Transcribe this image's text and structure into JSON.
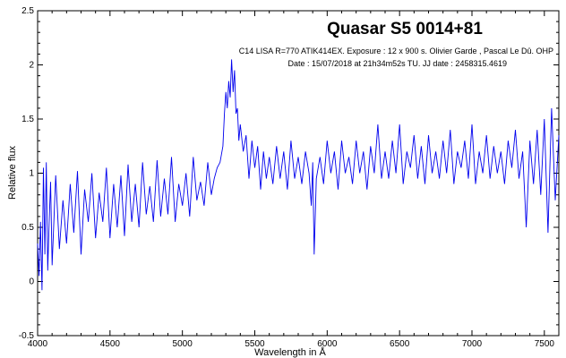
{
  "chart_data": {
    "type": "line",
    "title": "Quasar S5 0014+81",
    "subtitle_lines": [
      "C14 LISA R=770 ATIK414EX. Exposure : 12 x 900 s. Olivier Garde , Pascal Le Dû. OHP",
      "Date : 15/07/2018 at 21h34m52s TU. JJ date : 2458315.4619"
    ],
    "xlabel": "Wavelength in Å",
    "ylabel": "Relative flux",
    "xlim": [
      4000,
      7600
    ],
    "ylim": [
      -0.5,
      2.5
    ],
    "x_ticks": [
      {
        "value": 4000,
        "label": "4000"
      },
      {
        "value": 4500,
        "label": "4500"
      },
      {
        "value": 5000,
        "label": "5000"
      },
      {
        "value": 5500,
        "label": "5500"
      },
      {
        "value": 6000,
        "label": "6000"
      },
      {
        "value": 6500,
        "label": "6500"
      },
      {
        "value": 7000,
        "label": "7000"
      },
      {
        "value": 7500,
        "label": "7500"
      }
    ],
    "y_ticks": [
      {
        "value": -0.5,
        "label": "-0.5"
      },
      {
        "value": 0,
        "label": "0"
      },
      {
        "value": 0.5,
        "label": "0.5"
      },
      {
        "value": 1,
        "label": "1"
      },
      {
        "value": 1.5,
        "label": "1.5"
      },
      {
        "value": 2,
        "label": "2"
      },
      {
        "value": 2.5,
        "label": "2.5"
      }
    ],
    "grid": false,
    "line_color": "#0000ee",
    "series": [
      {
        "x": [
          4000,
          4010,
          4020,
          4030,
          4040,
          4050,
          4060,
          4070,
          4080,
          4090,
          4100,
          4125,
          4150,
          4175,
          4200,
          4225,
          4250,
          4275,
          4300,
          4325,
          4350,
          4375,
          4400,
          4425,
          4450,
          4475,
          4500,
          4525,
          4550,
          4575,
          4600,
          4625,
          4650,
          4675,
          4700,
          4725,
          4750,
          4775,
          4800,
          4825,
          4850,
          4875,
          4900,
          4925,
          4950,
          4975,
          5000,
          5025,
          5050,
          5075,
          5100,
          5125,
          5150,
          5175,
          5200,
          5220,
          5240,
          5260,
          5280,
          5290,
          5300,
          5310,
          5320,
          5330,
          5340,
          5350,
          5360,
          5370,
          5380,
          5390,
          5400,
          5420,
          5440,
          5460,
          5480,
          5500,
          5520,
          5540,
          5560,
          5580,
          5600,
          5625,
          5650,
          5675,
          5700,
          5725,
          5750,
          5775,
          5800,
          5825,
          5850,
          5875,
          5890,
          5900,
          5910,
          5925,
          5950,
          5975,
          6000,
          6025,
          6050,
          6075,
          6100,
          6125,
          6150,
          6175,
          6200,
          6225,
          6250,
          6275,
          6300,
          6325,
          6350,
          6375,
          6400,
          6425,
          6450,
          6475,
          6500,
          6525,
          6550,
          6575,
          6600,
          6625,
          6650,
          6675,
          6700,
          6725,
          6750,
          6775,
          6800,
          6825,
          6850,
          6875,
          6900,
          6925,
          6950,
          6975,
          7000,
          7025,
          7050,
          7075,
          7100,
          7125,
          7150,
          7175,
          7200,
          7225,
          7250,
          7275,
          7300,
          7325,
          7350,
          7375,
          7400,
          7425,
          7450,
          7475,
          7500,
          7525,
          7550,
          7575,
          7600
        ],
        "y": [
          0.35,
          0.05,
          0.55,
          -0.08,
          1.05,
          0.25,
          1.1,
          0.1,
          0.55,
          0.92,
          0.15,
          0.98,
          0.3,
          0.75,
          0.35,
          0.9,
          0.45,
          1.02,
          0.25,
          0.85,
          0.55,
          1.0,
          0.4,
          0.82,
          0.55,
          1.05,
          0.4,
          0.9,
          0.5,
          0.98,
          0.42,
          1.08,
          0.55,
          0.9,
          0.5,
          1.1,
          0.62,
          0.88,
          0.55,
          1.12,
          0.6,
          0.95,
          0.62,
          1.15,
          0.55,
          0.9,
          0.7,
          1.0,
          0.6,
          1.15,
          0.75,
          0.92,
          0.7,
          1.1,
          0.8,
          0.95,
          1.05,
          1.1,
          1.25,
          1.55,
          1.75,
          1.6,
          1.85,
          1.7,
          2.05,
          1.75,
          1.95,
          1.55,
          1.6,
          1.3,
          1.45,
          1.2,
          1.35,
          0.95,
          1.3,
          1.05,
          1.25,
          0.85,
          1.2,
          0.95,
          1.15,
          0.9,
          1.25,
          0.95,
          1.2,
          0.85,
          1.3,
          0.95,
          1.15,
          0.9,
          1.2,
          1.0,
          0.7,
          1.1,
          0.25,
          0.95,
          1.15,
          0.9,
          1.3,
          1.0,
          1.2,
          0.85,
          1.3,
          1.0,
          1.15,
          0.9,
          1.3,
          1.0,
          1.2,
          0.85,
          1.25,
          1.0,
          1.45,
          0.95,
          1.2,
          0.95,
          1.3,
          1.0,
          1.45,
          0.9,
          1.2,
          1.05,
          1.35,
          0.95,
          1.25,
          0.9,
          1.35,
          1.0,
          1.2,
          0.95,
          1.3,
          1.0,
          1.4,
          0.9,
          1.2,
          1.05,
          1.3,
          0.95,
          1.45,
          0.9,
          1.2,
          1.0,
          1.35,
          0.95,
          1.25,
          1.0,
          1.2,
          0.9,
          1.3,
          1.05,
          1.4,
          0.95,
          1.2,
          0.5,
          1.3,
          0.9,
          1.4,
          0.8,
          1.5,
          0.45,
          1.6,
          0.75,
          1.35
        ]
      }
    ]
  }
}
